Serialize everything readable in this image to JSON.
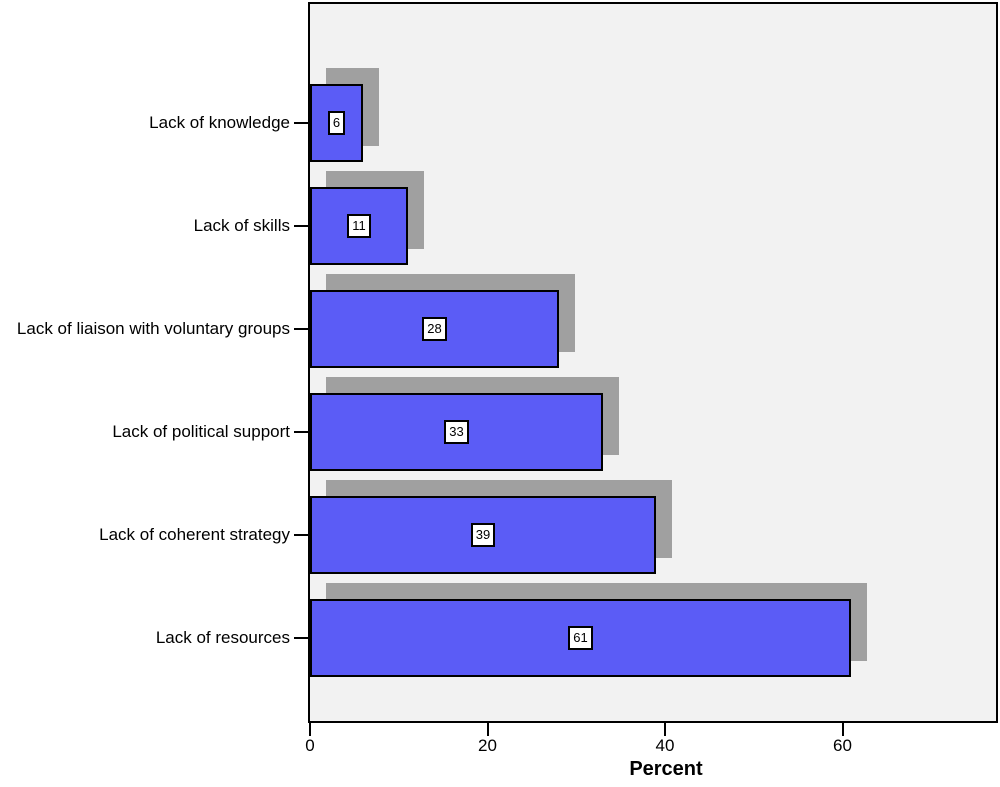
{
  "chart_data": {
    "type": "bar",
    "orientation": "horizontal",
    "title": "",
    "xlabel": "Percent",
    "ylabel": "",
    "categories": [
      "Lack of knowledge",
      "Lack of skills",
      "Lack of liaison with voluntary groups",
      "Lack of political support",
      "Lack of coherent strategy",
      "Lack of resources"
    ],
    "values": [
      6,
      11,
      28,
      33,
      39,
      61
    ],
    "value_labels": [
      "6",
      "11",
      "28",
      "33",
      "39",
      "61"
    ],
    "x_ticks": [
      0,
      20,
      40,
      60
    ],
    "x_tick_labels": [
      "0",
      "20",
      "40",
      "60"
    ],
    "xlim": [
      0,
      77
    ],
    "grid": false,
    "legend": null,
    "bar_style": "solid fill with offset drop shadow (shadow up-right), value shown in white box centered in bar",
    "colors": {
      "bar_fill": "#5b5cf6",
      "bar_border": "#000000",
      "bar_shadow": "#a0a0a0",
      "plot_background": "#f2f2f2",
      "page_background": "#ffffff",
      "axis_color": "#000000",
      "label_color": "#000000",
      "value_box_background": "#ffffff"
    }
  }
}
